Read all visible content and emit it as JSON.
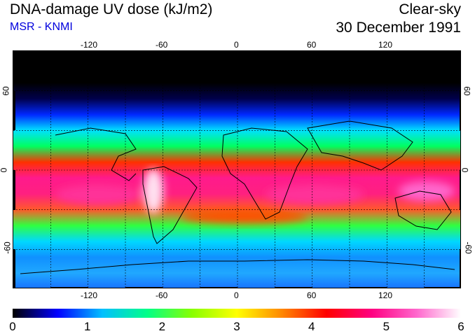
{
  "header": {
    "title": "DNA-damage UV dose (kJ/m2)",
    "subtitle": "MSR - KNMI",
    "condition": "Clear-sky",
    "date": "30 December 1991"
  },
  "axes": {
    "lon_ticks": [
      "-120",
      "-60",
      "0",
      "60",
      "120"
    ],
    "lat_left": [
      "60",
      "0",
      "-60"
    ],
    "lat_right": [
      "60",
      "0",
      "-60"
    ]
  },
  "colorbar": {
    "labels": [
      "0",
      "1",
      "2",
      "3",
      "4",
      "5",
      "6"
    ],
    "colors": [
      "#000000",
      "#0000ff",
      "#00bfff",
      "#00ff88",
      "#88ff00",
      "#ffff00",
      "#ff8800",
      "#ff0000",
      "#ff0080",
      "#ff66cc",
      "#ffffff"
    ]
  },
  "bands": {
    "colors": [
      "#000000",
      "#000000",
      "#000000",
      "#00004a",
      "#0028ff",
      "#00e0ff",
      "#00ff60",
      "#ff3000",
      "#ff1a8c",
      "#ff2080",
      "#ff5a2a",
      "#30ff40",
      "#00d8ff",
      "#1090ff",
      "#20a8ff",
      "#1870ff"
    ]
  }
}
